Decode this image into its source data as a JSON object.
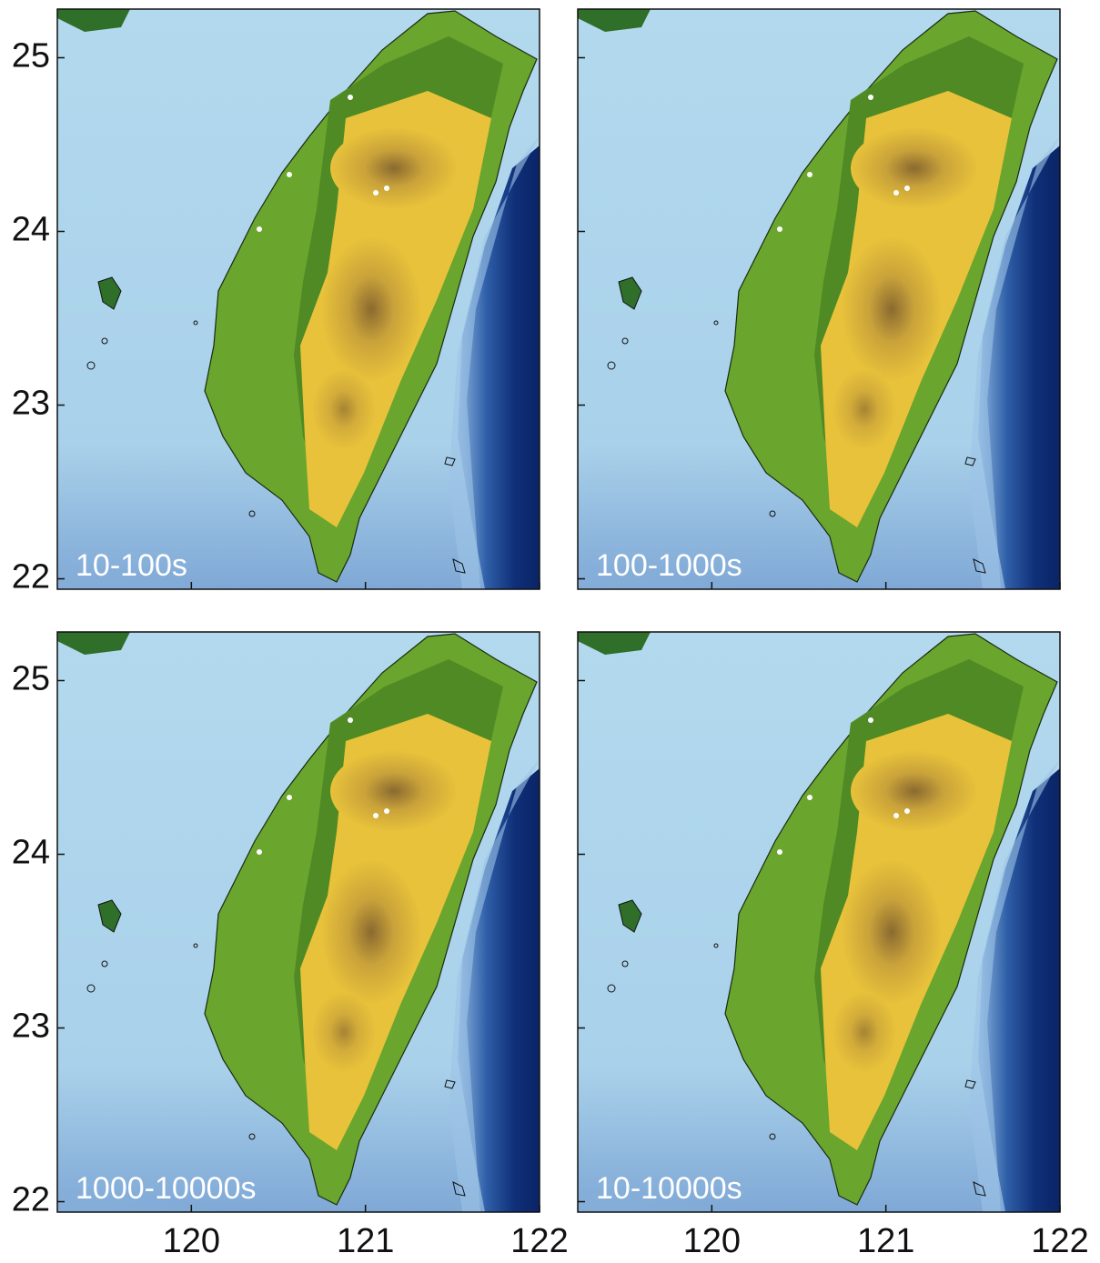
{
  "map": {
    "lon_lim": [
      119.23,
      122.0
    ],
    "lat_lim": [
      21.94,
      25.28
    ],
    "lon_ticks": [
      120,
      121,
      122
    ],
    "lat_ticks": [
      22,
      23,
      24,
      25
    ],
    "panels": [
      {
        "label": "10-100s"
      },
      {
        "label": "100-1000s"
      },
      {
        "label": "1000-10000s"
      },
      {
        "label": "10-10000s"
      }
    ]
  }
}
